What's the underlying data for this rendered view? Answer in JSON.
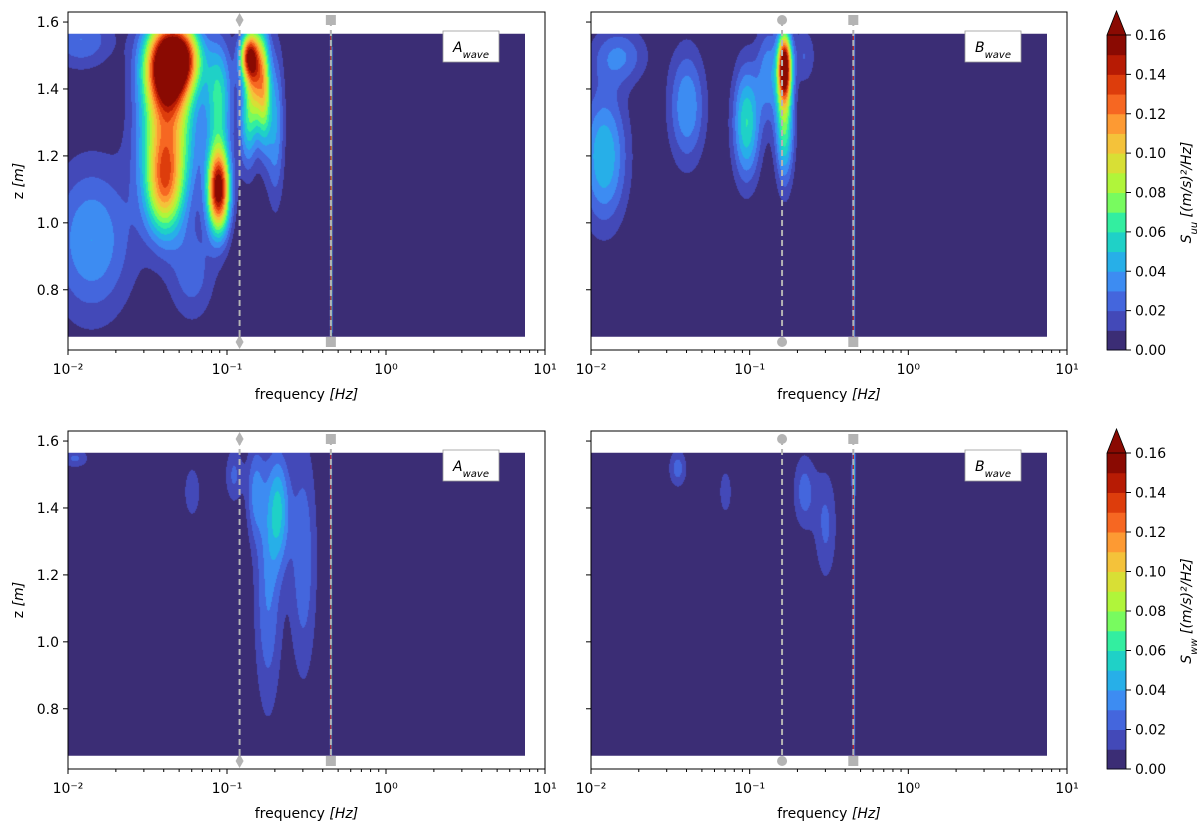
{
  "figure": {
    "colorbars": [
      {
        "label_main": "S",
        "label_sub": "uu",
        "label_unit": " [(m/s)²/Hz]",
        "ticks": [
          "0.00",
          "0.02",
          "0.04",
          "0.06",
          "0.08",
          "0.10",
          "0.12",
          "0.14",
          "0.16"
        ],
        "range": [
          0,
          0.16
        ],
        "extend": "max"
      },
      {
        "label_main": "S",
        "label_sub": "ww",
        "label_unit": " [(m/s)²/Hz]",
        "ticks": [
          "0.00",
          "0.02",
          "0.04",
          "0.06",
          "0.08",
          "0.10",
          "0.12",
          "0.14",
          "0.16"
        ],
        "range": [
          0,
          0.16
        ],
        "extend": "max"
      }
    ],
    "level_colors": [
      "#3b2d75",
      "#4349b8",
      "#4466dd",
      "#3d8cf2",
      "#27afe8",
      "#1fd1c7",
      "#33eea0",
      "#78fb5f",
      "#b0f53a",
      "#d8df35",
      "#f4c23a",
      "#fd9a33",
      "#f66722",
      "#dd3d0c",
      "#b71b04",
      "#8a0a02"
    ],
    "background_level_color": "#3b2d75",
    "marker_color": "#b4b4b4"
  },
  "chart_data": [
    {
      "type": "heatmap",
      "panel": "top-left",
      "variable": "S_uu",
      "annotation_main": "A",
      "annotation_sub": "wave",
      "xlabel_main": "frequency ",
      "xlabel_unit": "[Hz]",
      "ylabel_main": "z ",
      "ylabel_unit": "[m]",
      "x_scale": "log",
      "xlim": [
        0.01,
        10
      ],
      "x_ticks": [
        "10⁻²",
        "10⁻¹",
        "10⁰",
        "10¹"
      ],
      "ylim": [
        0.62,
        1.63
      ],
      "y_ticks": [
        "0.8",
        "1.0",
        "1.2",
        "1.4",
        "1.6"
      ],
      "data_extent": {
        "x": [
          0.01,
          7.5
        ],
        "z": [
          0.66,
          1.565
        ]
      },
      "markers": [
        {
          "x": 0.12,
          "shape": "diamond",
          "line": "dashed"
        },
        {
          "x": 0.45,
          "shape": "square",
          "line": "dashed"
        }
      ],
      "hotspots": [
        {
          "f": 0.042,
          "z": 1.48,
          "sf": 0.1,
          "sz": 0.09,
          "a": 0.16
        },
        {
          "f": 0.042,
          "z": 1.27,
          "sf": 0.12,
          "sz": 0.16,
          "a": 0.1
        },
        {
          "f": 0.04,
          "z": 1.1,
          "sf": 0.08,
          "sz": 0.1,
          "a": 0.07
        },
        {
          "f": 0.088,
          "z": 1.1,
          "sf": 0.05,
          "sz": 0.09,
          "a": 0.16
        },
        {
          "f": 0.088,
          "z": 1.38,
          "sf": 0.06,
          "sz": 0.12,
          "a": 0.06
        },
        {
          "f": 0.055,
          "z": 1.5,
          "sf": 0.08,
          "sz": 0.07,
          "a": 0.07
        },
        {
          "f": 0.014,
          "z": 0.95,
          "sf": 0.18,
          "sz": 0.16,
          "a": 0.04
        },
        {
          "f": 0.012,
          "z": 1.55,
          "sf": 0.14,
          "sz": 0.06,
          "a": 0.03
        },
        {
          "f": 0.135,
          "z": 1.5,
          "sf": 0.04,
          "sz": 0.05,
          "a": 0.11
        },
        {
          "f": 0.135,
          "z": 1.3,
          "sf": 0.04,
          "sz": 0.1,
          "a": 0.05
        },
        {
          "f": 0.15,
          "z": 1.45,
          "sf": 0.04,
          "sz": 0.1,
          "a": 0.09
        },
        {
          "f": 0.17,
          "z": 1.4,
          "sf": 0.03,
          "sz": 0.12,
          "a": 0.07
        },
        {
          "f": 0.2,
          "z": 1.3,
          "sf": 0.04,
          "sz": 0.16,
          "a": 0.04
        },
        {
          "f": 0.45,
          "z": 1.1,
          "sf": 0.004,
          "sz": 0.5,
          "a": 0.09
        },
        {
          "f": 0.06,
          "z": 0.85,
          "sf": 0.1,
          "sz": 0.1,
          "a": 0.025
        }
      ]
    },
    {
      "type": "heatmap",
      "panel": "top-right",
      "variable": "S_uu",
      "annotation_main": "B",
      "annotation_sub": "wave",
      "xlabel_main": "frequency ",
      "xlabel_unit": "[Hz]",
      "x_scale": "log",
      "xlim": [
        0.01,
        10
      ],
      "x_ticks": [
        "10⁻²",
        "10⁻¹",
        "10⁰",
        "10¹"
      ],
      "ylim": [
        0.62,
        1.63
      ],
      "data_extent": {
        "x": [
          0.01,
          7.5
        ],
        "z": [
          0.66,
          1.565
        ]
      },
      "markers": [
        {
          "x": 0.16,
          "shape": "circle",
          "line": "dashed"
        },
        {
          "x": 0.45,
          "shape": "square",
          "line": "dashed"
        }
      ],
      "hotspots": [
        {
          "f": 0.165,
          "z": 1.47,
          "sf": 0.03,
          "sz": 0.07,
          "a": 0.16
        },
        {
          "f": 0.165,
          "z": 1.3,
          "sf": 0.04,
          "sz": 0.12,
          "a": 0.07
        },
        {
          "f": 0.095,
          "z": 1.3,
          "sf": 0.06,
          "sz": 0.12,
          "a": 0.06
        },
        {
          "f": 0.04,
          "z": 1.35,
          "sf": 0.08,
          "sz": 0.12,
          "a": 0.04
        },
        {
          "f": 0.012,
          "z": 1.2,
          "sf": 0.1,
          "sz": 0.14,
          "a": 0.05
        },
        {
          "f": 0.015,
          "z": 1.5,
          "sf": 0.12,
          "sz": 0.06,
          "a": 0.03
        },
        {
          "f": 0.13,
          "z": 1.45,
          "sf": 0.05,
          "sz": 0.1,
          "a": 0.035
        },
        {
          "f": 0.45,
          "z": 1.1,
          "sf": 0.004,
          "sz": 0.5,
          "a": 0.08
        },
        {
          "f": 0.22,
          "z": 1.5,
          "sf": 0.05,
          "sz": 0.06,
          "a": 0.02
        }
      ]
    },
    {
      "type": "heatmap",
      "panel": "bottom-left",
      "variable": "S_ww",
      "annotation_main": "A",
      "annotation_sub": "wave",
      "xlabel_main": "frequency ",
      "xlabel_unit": "[Hz]",
      "ylabel_main": "z ",
      "ylabel_unit": "[m]",
      "x_scale": "log",
      "xlim": [
        0.01,
        10
      ],
      "x_ticks": [
        "10⁻²",
        "10⁻¹",
        "10⁰",
        "10¹"
      ],
      "ylim": [
        0.62,
        1.63
      ],
      "y_ticks": [
        "0.8",
        "1.0",
        "1.2",
        "1.4",
        "1.6"
      ],
      "data_extent": {
        "x": [
          0.01,
          7.5
        ],
        "z": [
          0.66,
          1.565
        ]
      },
      "markers": [
        {
          "x": 0.12,
          "shape": "diamond",
          "line": "dashed"
        },
        {
          "x": 0.45,
          "shape": "square",
          "line": "dashed"
        }
      ],
      "hotspots": [
        {
          "f": 0.21,
          "z": 1.4,
          "sf": 0.05,
          "sz": 0.12,
          "a": 0.045
        },
        {
          "f": 0.18,
          "z": 1.15,
          "sf": 0.06,
          "sz": 0.25,
          "a": 0.03
        },
        {
          "f": 0.3,
          "z": 1.25,
          "sf": 0.06,
          "sz": 0.25,
          "a": 0.028
        },
        {
          "f": 0.15,
          "z": 1.45,
          "sf": 0.04,
          "sz": 0.1,
          "a": 0.03
        },
        {
          "f": 0.11,
          "z": 1.5,
          "sf": 0.04,
          "sz": 0.06,
          "a": 0.022
        },
        {
          "f": 0.011,
          "z": 1.55,
          "sf": 0.06,
          "sz": 0.02,
          "a": 0.022
        },
        {
          "f": 0.45,
          "z": 1.1,
          "sf": 0.004,
          "sz": 0.5,
          "a": 0.06
        },
        {
          "f": 0.06,
          "z": 1.45,
          "sf": 0.04,
          "sz": 0.06,
          "a": 0.018
        }
      ]
    },
    {
      "type": "heatmap",
      "panel": "bottom-right",
      "variable": "S_ww",
      "annotation_main": "B",
      "annotation_sub": "wave",
      "xlabel_main": "frequency ",
      "xlabel_unit": "[Hz]",
      "x_scale": "log",
      "xlim": [
        0.01,
        10
      ],
      "x_ticks": [
        "10⁻²",
        "10⁻¹",
        "10⁰",
        "10¹"
      ],
      "ylim": [
        0.62,
        1.63
      ],
      "data_extent": {
        "x": [
          0.01,
          7.5
        ],
        "z": [
          0.66,
          1.565
        ]
      },
      "markers": [
        {
          "x": 0.16,
          "shape": "circle",
          "line": "dashed"
        },
        {
          "x": 0.45,
          "shape": "square",
          "line": "dashed"
        }
      ],
      "hotspots": [
        {
          "f": 0.035,
          "z": 1.52,
          "sf": 0.04,
          "sz": 0.04,
          "a": 0.025
        },
        {
          "f": 0.22,
          "z": 1.45,
          "sf": 0.05,
          "sz": 0.08,
          "a": 0.025
        },
        {
          "f": 0.3,
          "z": 1.35,
          "sf": 0.05,
          "sz": 0.12,
          "a": 0.022
        },
        {
          "f": 0.07,
          "z": 1.45,
          "sf": 0.03,
          "sz": 0.05,
          "a": 0.018
        },
        {
          "f": 0.45,
          "z": 1.1,
          "sf": 0.004,
          "sz": 0.5,
          "a": 0.06
        },
        {
          "f": 0.45,
          "z": 1.5,
          "sf": 0.01,
          "sz": 0.06,
          "a": 0.03
        }
      ]
    }
  ]
}
